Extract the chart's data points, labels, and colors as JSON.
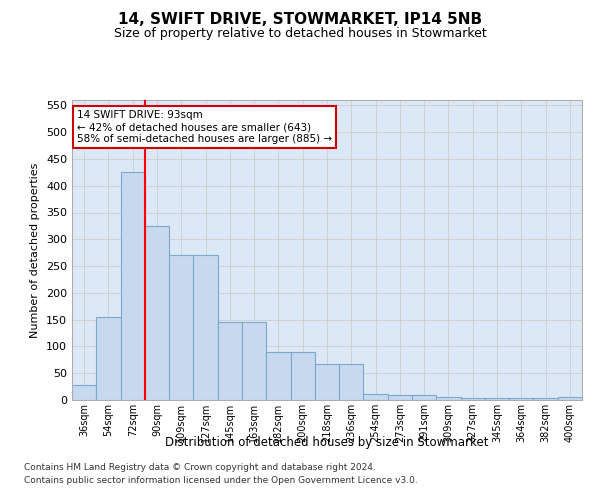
{
  "title": "14, SWIFT DRIVE, STOWMARKET, IP14 5NB",
  "subtitle": "Size of property relative to detached houses in Stowmarket",
  "xlabel": "Distribution of detached houses by size in Stowmarket",
  "ylabel": "Number of detached properties",
  "categories": [
    "36sqm",
    "54sqm",
    "72sqm",
    "90sqm",
    "109sqm",
    "127sqm",
    "145sqm",
    "163sqm",
    "182sqm",
    "200sqm",
    "218sqm",
    "236sqm",
    "254sqm",
    "273sqm",
    "291sqm",
    "309sqm",
    "327sqm",
    "345sqm",
    "364sqm",
    "382sqm",
    "400sqm"
  ],
  "values": [
    28,
    155,
    425,
    325,
    270,
    270,
    145,
    145,
    90,
    90,
    67,
    67,
    12,
    10,
    10,
    5,
    4,
    3,
    3,
    3,
    5
  ],
  "bar_color": "#c8d8ee",
  "bar_edge_color": "#7aaad0",
  "red_line_index": 2.5,
  "annotation_text": "14 SWIFT DRIVE: 93sqm\n← 42% of detached houses are smaller (643)\n58% of semi-detached houses are larger (885) →",
  "annotation_box_color": "#ffffff",
  "annotation_box_edge": "#cc0000",
  "ylim": [
    0,
    560
  ],
  "yticks": [
    0,
    50,
    100,
    150,
    200,
    250,
    300,
    350,
    400,
    450,
    500,
    550
  ],
  "footer1": "Contains HM Land Registry data © Crown copyright and database right 2024.",
  "footer2": "Contains public sector information licensed under the Open Government Licence v3.0.",
  "background_color": "#ffffff",
  "grid_color": "#cccccc"
}
